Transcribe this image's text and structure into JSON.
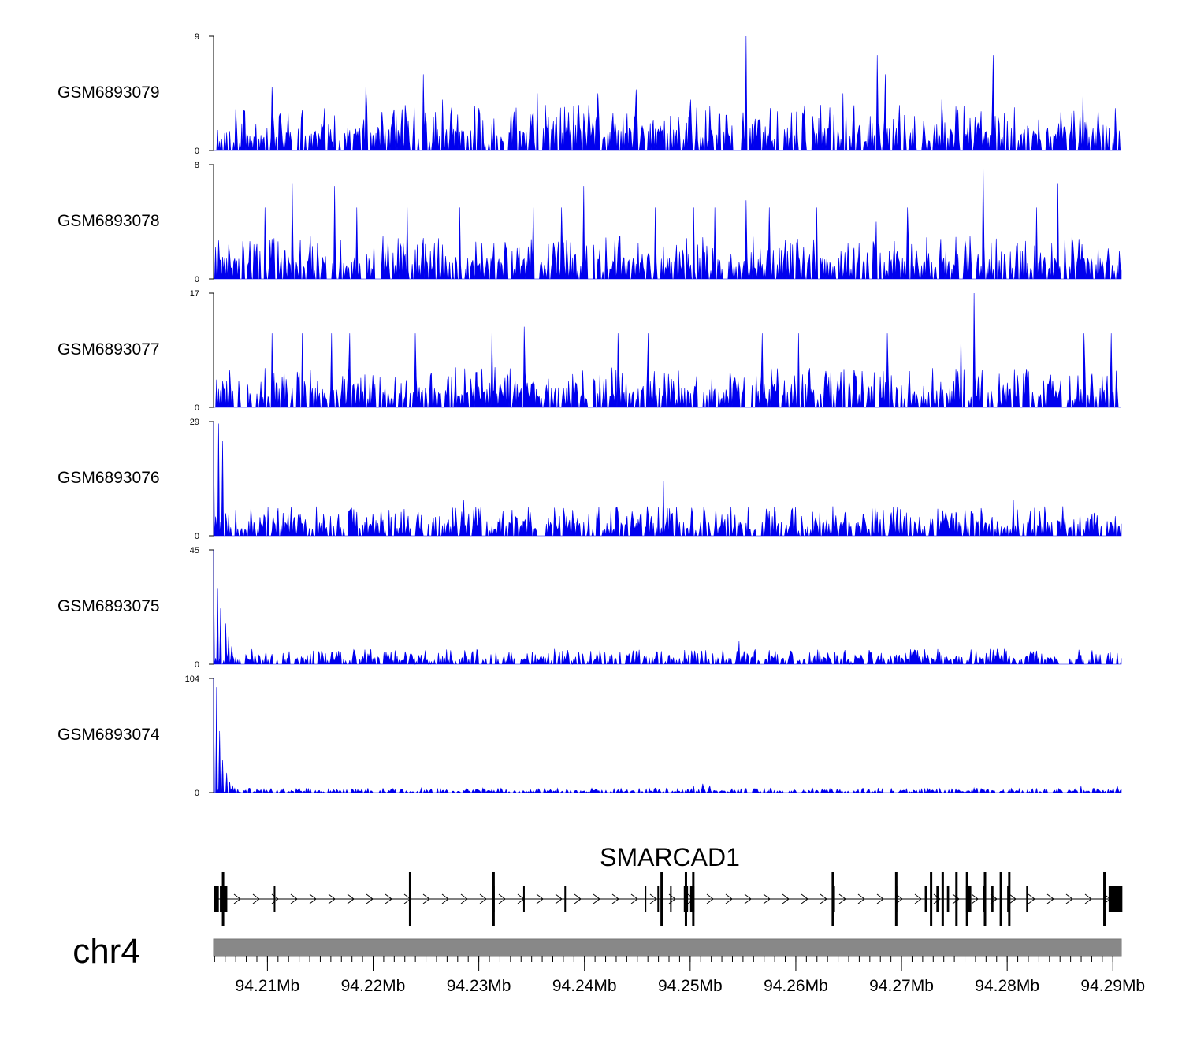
{
  "chart_data": {
    "type": "area",
    "title": "",
    "chromosome": "chr4",
    "xlabel": "",
    "xlim_mb": [
      94.2049,
      94.2908
    ],
    "x_ticks": [
      "94.21Mb",
      "94.22Mb",
      "94.23Mb",
      "94.24Mb",
      "94.25Mb",
      "94.26Mb",
      "94.27Mb",
      "94.28Mb",
      "94.29Mb"
    ],
    "x_tick_values_mb": [
      94.21,
      94.22,
      94.23,
      94.24,
      94.25,
      94.26,
      94.27,
      94.28,
      94.29
    ],
    "series_color": "#0000ee",
    "tracks": [
      {
        "name": "GSM6893079",
        "ymin": "0",
        "ymax": "9",
        "ylim": [
          0,
          9
        ],
        "baseline": 1.2,
        "seed": 11,
        "peaks": [
          [
            94.2104,
            5.0
          ],
          [
            94.2193,
            5.0
          ],
          [
            94.2248,
            6.0
          ],
          [
            94.2266,
            4.0
          ],
          [
            94.2355,
            4.5
          ],
          [
            94.239,
            3.5
          ],
          [
            94.2413,
            4.5
          ],
          [
            94.2449,
            4.8
          ],
          [
            94.25,
            4.0
          ],
          [
            94.2519,
            3.5
          ],
          [
            94.2553,
            9.0
          ],
          [
            94.2645,
            4.5
          ],
          [
            94.2677,
            7.5
          ],
          [
            94.2685,
            6.0
          ],
          [
            94.2738,
            4.0
          ],
          [
            94.2787,
            7.5
          ],
          [
            94.2872,
            4.5
          ]
        ]
      },
      {
        "name": "GSM6893078",
        "ymin": "0",
        "ymax": "8",
        "ylim": [
          0,
          8
        ],
        "baseline": 1.0,
        "seed": 22,
        "peaks": [
          [
            94.2098,
            5.0
          ],
          [
            94.2123,
            6.7
          ],
          [
            94.2164,
            6.5
          ],
          [
            94.2185,
            5.0
          ],
          [
            94.2232,
            5.0
          ],
          [
            94.2282,
            5.0
          ],
          [
            94.2352,
            5.0
          ],
          [
            94.2378,
            5.0
          ],
          [
            94.2399,
            6.5
          ],
          [
            94.2467,
            5.0
          ],
          [
            94.2503,
            5.0
          ],
          [
            94.2523,
            5.0
          ],
          [
            94.2553,
            5.5
          ],
          [
            94.2575,
            5.0
          ],
          [
            94.262,
            5.0
          ],
          [
            94.2676,
            4.0
          ],
          [
            94.2706,
            5.0
          ],
          [
            94.2777,
            8.0
          ],
          [
            94.2828,
            5.0
          ],
          [
            94.2848,
            6.7
          ]
        ]
      },
      {
        "name": "GSM6893077",
        "ymin": "0",
        "ymax": "17",
        "ylim": [
          0,
          17
        ],
        "baseline": 2.0,
        "seed": 33,
        "peaks": [
          [
            94.2104,
            11.0
          ],
          [
            94.2133,
            11.0
          ],
          [
            94.2161,
            11.0
          ],
          [
            94.2178,
            11.0
          ],
          [
            94.224,
            11.0
          ],
          [
            94.2312,
            11.0
          ],
          [
            94.2343,
            12.0
          ],
          [
            94.2432,
            11.0
          ],
          [
            94.246,
            11.0
          ],
          [
            94.2568,
            11.0
          ],
          [
            94.2603,
            11.0
          ],
          [
            94.2687,
            11.0
          ],
          [
            94.2756,
            11.0
          ],
          [
            94.2769,
            17.0
          ],
          [
            94.2873,
            11.0
          ],
          [
            94.2898,
            11.0
          ]
        ]
      },
      {
        "name": "GSM6893076",
        "ymin": "0",
        "ymax": "29",
        "ylim": [
          0,
          29
        ],
        "baseline": 2.5,
        "seed": 44,
        "peaks": [
          [
            94.2049,
            29.0
          ],
          [
            94.2054,
            28.5
          ],
          [
            94.2058,
            24.0
          ],
          [
            94.2109,
            5.0
          ],
          [
            94.216,
            5.0
          ],
          [
            94.2242,
            5.0
          ],
          [
            94.2286,
            9.0
          ],
          [
            94.2334,
            5.0
          ],
          [
            94.2376,
            5.0
          ],
          [
            94.244,
            5.0
          ],
          [
            94.2475,
            14.0
          ],
          [
            94.253,
            5.0
          ],
          [
            94.2605,
            5.0
          ],
          [
            94.2703,
            5.0
          ],
          [
            94.2806,
            9.0
          ],
          [
            94.2836,
            5.0
          ]
        ]
      },
      {
        "name": "GSM6893075",
        "ymin": "0",
        "ymax": "45",
        "ylim": [
          0,
          45
        ],
        "baseline": 2.0,
        "seed": 55,
        "peaks": [
          [
            94.2049,
            45.0
          ],
          [
            94.2053,
            30.0
          ],
          [
            94.2056,
            22.0
          ],
          [
            94.206,
            16.0
          ],
          [
            94.2063,
            11.0
          ],
          [
            94.2066,
            7.0
          ],
          [
            94.2099,
            5.0
          ],
          [
            94.2148,
            5.0
          ],
          [
            94.2183,
            5.0
          ],
          [
            94.223,
            5.0
          ],
          [
            94.2249,
            5.0
          ],
          [
            94.2331,
            5.0
          ],
          [
            94.2372,
            6.0
          ],
          [
            94.2546,
            9.0
          ],
          [
            94.2791,
            6.0
          ]
        ]
      },
      {
        "name": "GSM6893074",
        "ymin": "0",
        "ymax": "104",
        "ylim": [
          0,
          104
        ],
        "baseline": 1.4,
        "seed": 66,
        "peaks": [
          [
            94.2049,
            104.0
          ],
          [
            94.2052,
            96.0
          ],
          [
            94.2055,
            56.0
          ],
          [
            94.2058,
            30.0
          ],
          [
            94.2061,
            18.0
          ],
          [
            94.2064,
            10.0
          ],
          [
            94.2067,
            6.0
          ],
          [
            94.2503,
            6.0
          ],
          [
            94.2512,
            8.0
          ],
          [
            94.2519,
            6.0
          ],
          [
            94.2576,
            4.0
          ],
          [
            94.287,
            6.0
          ],
          [
            94.2904,
            6.0
          ]
        ]
      }
    ],
    "gene": {
      "name": "SMARCAD1",
      "strand": "+",
      "start_mb": 94.2049,
      "end_mb": 94.2908,
      "exons_mb": [
        [
          94.2049,
          94.2054
        ],
        [
          94.2055,
          94.2058
        ],
        [
          94.2059,
          94.2062
        ],
        [
          94.2106,
          94.2107
        ],
        [
          94.2234,
          94.2236
        ],
        [
          94.2313,
          94.2315
        ],
        [
          94.2342,
          94.2343
        ],
        [
          94.2381,
          94.2382
        ],
        [
          94.2457,
          94.2458
        ],
        [
          94.2469,
          94.247
        ],
        [
          94.2481,
          94.2482
        ],
        [
          94.2494,
          94.2498
        ],
        [
          94.25,
          94.2504
        ],
        [
          94.2634,
          94.2637
        ],
        [
          94.2694,
          94.2696
        ],
        [
          94.2722,
          94.2724
        ],
        [
          94.2733,
          94.2735
        ],
        [
          94.2743,
          94.2745
        ],
        [
          94.2761,
          94.2766
        ],
        [
          94.2777,
          94.2779
        ],
        [
          94.2785,
          94.2787
        ],
        [
          94.28,
          94.2802
        ],
        [
          94.2818,
          94.2819
        ],
        [
          94.2896,
          94.2909
        ]
      ],
      "tall_exons_mb": [
        94.2058,
        94.2235,
        94.2314,
        94.2473,
        94.2496,
        94.2503,
        94.2635,
        94.2695,
        94.2728,
        94.2739,
        94.2752,
        94.2762,
        94.2779,
        94.2794,
        94.2802,
        94.2892
      ]
    }
  }
}
